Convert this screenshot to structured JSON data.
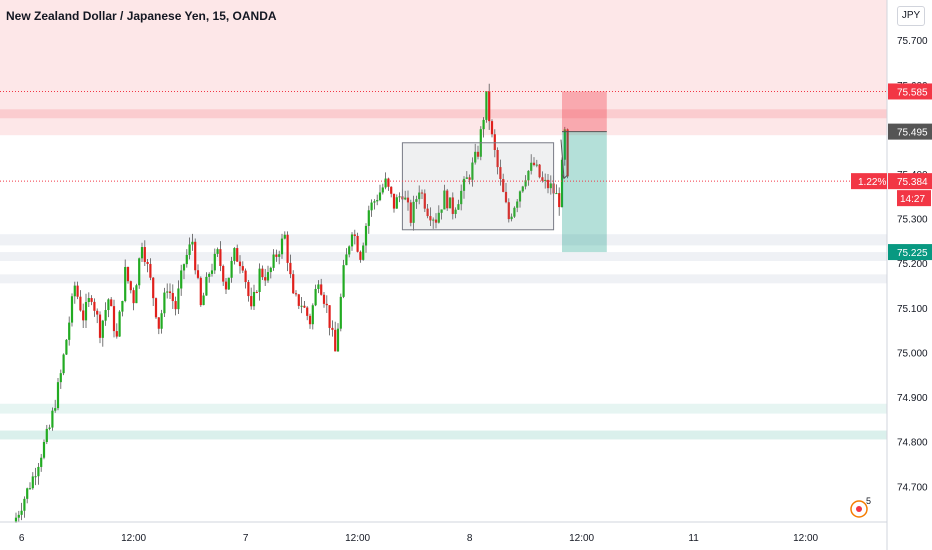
{
  "ui": {
    "currency": "JPY",
    "badge_count": "5"
  },
  "chart_data": {
    "type": "candlestick",
    "title": "New Zealand Dollar / Japanese Yen, 15, OANDA",
    "ylim": [
      74.62,
      75.79
    ],
    "y_ticks": [
      "75.700",
      "75.600",
      "75.500",
      "75.400",
      "75.300",
      "75.200",
      "75.100",
      "75.000",
      "74.900",
      "74.800",
      "74.700"
    ],
    "x_ticks": [
      "6",
      "12:00",
      "7",
      "12:00",
      "8",
      "12:00",
      "11",
      "12:00"
    ],
    "x_tick_bars": [
      2,
      42,
      82,
      122,
      162,
      202,
      242,
      282
    ],
    "grid": false,
    "price_tags": [
      {
        "label": "75.585",
        "price": 75.585,
        "color": "#f23645"
      },
      {
        "label": "75.495",
        "price": 75.495,
        "color": "#555555"
      },
      {
        "label": "75.384",
        "price": 75.384,
        "color": "#f23645",
        "percent": "1.22%",
        "countdown": "14:27"
      },
      {
        "label": "75.225",
        "price": 75.225,
        "color": "#089981"
      }
    ],
    "zones": [
      {
        "from": 75.487,
        "to": 75.79,
        "color": "#f23645",
        "opacity": 0.12
      },
      {
        "from": 75.525,
        "to": 75.545,
        "color": "#f23645",
        "opacity": 0.15
      },
      {
        "from": 75.24,
        "to": 75.265,
        "color": "#e0e3eb",
        "opacity": 0.5
      },
      {
        "from": 75.205,
        "to": 75.225,
        "color": "#e0e3eb",
        "opacity": 0.5
      },
      {
        "from": 75.155,
        "to": 75.175,
        "color": "#e0e3eb",
        "opacity": 0.5
      },
      {
        "from": 74.863,
        "to": 74.885,
        "color": "#089981",
        "opacity": 0.1
      },
      {
        "from": 74.805,
        "to": 74.825,
        "color": "#089981",
        "opacity": 0.15
      }
    ],
    "range_box": {
      "from_bar": 138,
      "to_bar": 192,
      "low": 75.275,
      "high": 75.47
    },
    "trade": {
      "bar": 195,
      "end_bar": 211,
      "entry": 75.495,
      "stop": 75.585,
      "target": 75.225
    },
    "close_points": [
      [
        0,
        74.63
      ],
      [
        6,
        74.72
      ],
      [
        12,
        74.83
      ],
      [
        16,
        74.95
      ],
      [
        19,
        75.07
      ],
      [
        21,
        75.15
      ],
      [
        24,
        75.08
      ],
      [
        27,
        75.13
      ],
      [
        30,
        75.05
      ],
      [
        33,
        75.12
      ],
      [
        36,
        75.03
      ],
      [
        39,
        75.18
      ],
      [
        42,
        75.12
      ],
      [
        45,
        75.25
      ],
      [
        48,
        75.16
      ],
      [
        51,
        75.06
      ],
      [
        54,
        75.15
      ],
      [
        57,
        75.1
      ],
      [
        60,
        75.2
      ],
      [
        63,
        75.25
      ],
      [
        66,
        75.1
      ],
      [
        69,
        75.18
      ],
      [
        72,
        75.22
      ],
      [
        75,
        75.15
      ],
      [
        78,
        75.22
      ],
      [
        81,
        75.2
      ],
      [
        84,
        75.09
      ],
      [
        87,
        75.18
      ],
      [
        90,
        75.17
      ],
      [
        93,
        75.22
      ],
      [
        96,
        75.26
      ],
      [
        99,
        75.12
      ],
      [
        102,
        75.11
      ],
      [
        105,
        75.07
      ],
      [
        108,
        75.17
      ],
      [
        111,
        75.1
      ],
      [
        114,
        75.0
      ],
      [
        117,
        75.18
      ],
      [
        120,
        75.28
      ],
      [
        123,
        75.22
      ],
      [
        126,
        75.32
      ],
      [
        129,
        75.35
      ],
      [
        132,
        75.38
      ],
      [
        135,
        75.33
      ],
      [
        138,
        75.36
      ],
      [
        141,
        75.3
      ],
      [
        144,
        75.37
      ],
      [
        147,
        75.32
      ],
      [
        150,
        75.3
      ],
      [
        153,
        75.35
      ],
      [
        156,
        75.32
      ],
      [
        159,
        75.36
      ],
      [
        162,
        75.4
      ],
      [
        165,
        75.45
      ],
      [
        168,
        75.57
      ],
      [
        170,
        75.48
      ],
      [
        173,
        75.38
      ],
      [
        176,
        75.3
      ],
      [
        179,
        75.35
      ],
      [
        182,
        75.4
      ],
      [
        185,
        75.42
      ],
      [
        188,
        75.38
      ],
      [
        191,
        75.37
      ],
      [
        194,
        75.34
      ],
      [
        196,
        75.49
      ],
      [
        197,
        75.38
      ]
    ]
  }
}
